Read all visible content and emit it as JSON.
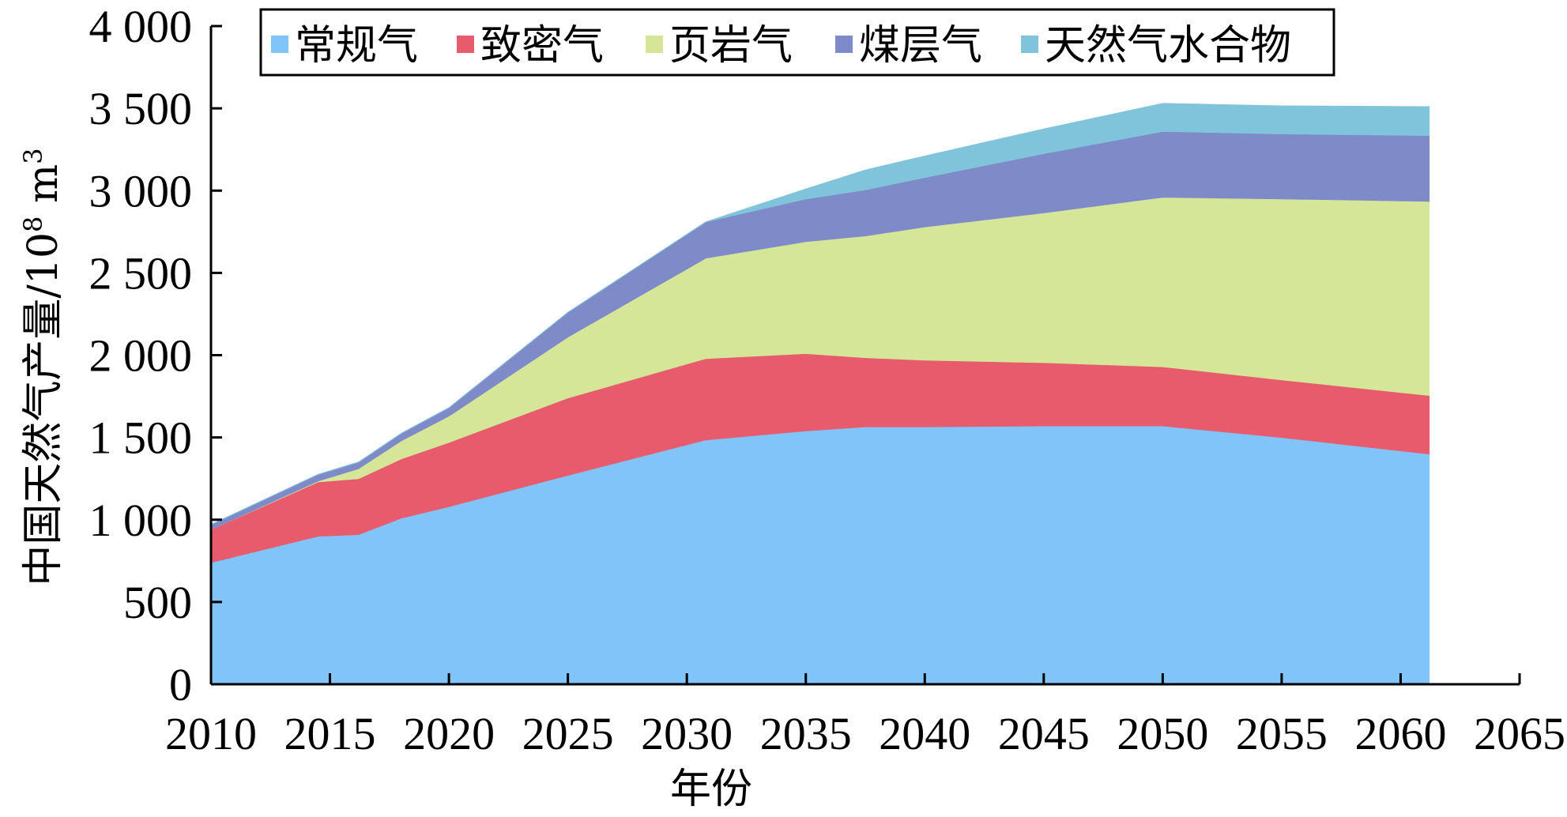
{
  "chart_data": {
    "type": "area",
    "stacked": true,
    "title": "",
    "xlabel": "年份",
    "ylabel_main": "中国天然气产量/10",
    "ylabel_sup1": "8",
    "ylabel_unit": " m",
    "ylabel_sup2": "3",
    "xlim": [
      2010,
      2065
    ],
    "ylim": [
      0,
      4000
    ],
    "x_ticks": [
      2010,
      2015,
      2020,
      2025,
      2030,
      2035,
      2040,
      2045,
      2050,
      2055,
      2060,
      2065
    ],
    "x_tick_labels": [
      "2010",
      "2015",
      "2020",
      "2025",
      "2030",
      "2035",
      "2040",
      "2045",
      "2050",
      "2055",
      "2060",
      "2065"
    ],
    "y_ticks": [
      0,
      500,
      1000,
      1500,
      2000,
      2500,
      3000,
      3500,
      4000
    ],
    "y_tick_labels": [
      "0",
      "500",
      "1 000",
      "1 500",
      "2 000",
      "2 500",
      "3 000",
      "3 500",
      "4 000"
    ],
    "grid": false,
    "legend_position": "top",
    "series": [
      {
        "name": "常规气",
        "color": "#80C4FA",
        "x": [
          2010,
          2014.5,
          2016.2,
          2018,
          2020,
          2025,
          2030.8,
          2035,
          2037.5,
          2040,
          2045,
          2050,
          2055,
          2061.2
        ],
        "values": [
          740,
          900,
          910,
          1010,
          1080,
          1270,
          1485,
          1540,
          1565,
          1565,
          1570,
          1570,
          1500,
          1400
        ]
      },
      {
        "name": "致密气",
        "color": "#E85B6C",
        "x": [
          2010,
          2014.5,
          2016.2,
          2018,
          2020,
          2025,
          2030.8,
          2035,
          2037.5,
          2040,
          2045,
          2050,
          2055,
          2061.2
        ],
        "values": [
          200,
          330,
          340,
          360,
          390,
          470,
          495,
          470,
          420,
          405,
          385,
          360,
          350,
          355
        ]
      },
      {
        "name": "页岩气",
        "color": "#D6E699",
        "x": [
          2010,
          2014.5,
          2016.2,
          2018,
          2020,
          2025,
          2030.8,
          2035,
          2037.5,
          2040,
          2045,
          2050,
          2055,
          2061.2
        ],
        "values": [
          0,
          5,
          60,
          110,
          160,
          370,
          610,
          680,
          740,
          810,
          910,
          1030,
          1100,
          1180
        ]
      },
      {
        "name": "煤层气",
        "color": "#7F8BC8",
        "x": [
          2010,
          2014.5,
          2016.2,
          2018,
          2020,
          2025,
          2030.8,
          2035,
          2037.5,
          2040,
          2045,
          2050,
          2055,
          2061.2
        ],
        "values": [
          30,
          40,
          40,
          45,
          50,
          150,
          220,
          260,
          280,
          300,
          360,
          400,
          395,
          400
        ]
      },
      {
        "name": "天然气水合物",
        "color": "#80C4DC",
        "x": [
          2010,
          2014.5,
          2016.2,
          2018,
          2020,
          2025,
          2030.8,
          2035,
          2037.5,
          2040,
          2045,
          2050,
          2055,
          2061.2
        ],
        "values": [
          0,
          0,
          0,
          0,
          0,
          0,
          0,
          60,
          120,
          130,
          150,
          170,
          170,
          175
        ]
      }
    ]
  }
}
